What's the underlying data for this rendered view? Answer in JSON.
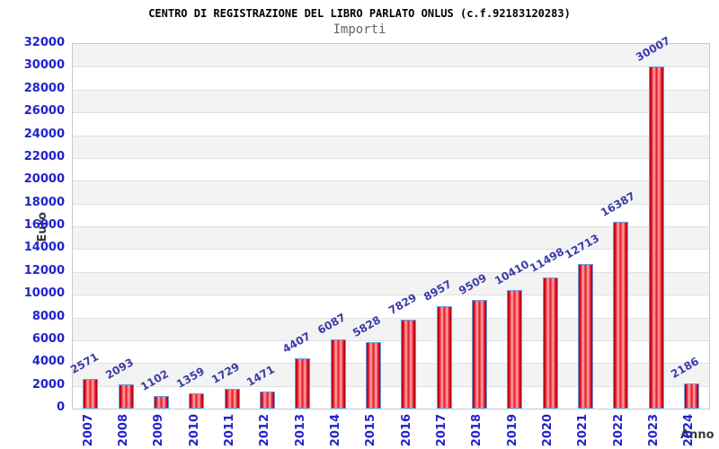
{
  "chart_data": {
    "type": "bar",
    "title": "CENTRO DI REGISTRAZIONE DEL LIBRO PARLATO ONLUS (c.f.92183120283)",
    "subtitle": "Importi",
    "xlabel": "Anno",
    "ylabel": "Euro",
    "categories": [
      "2007",
      "2008",
      "2009",
      "2010",
      "2011",
      "2012",
      "2013",
      "2014",
      "2015",
      "2016",
      "2017",
      "2018",
      "2019",
      "2020",
      "2021",
      "2022",
      "2023",
      "2024"
    ],
    "values": [
      2571,
      2093,
      1102,
      1359,
      1729,
      1471,
      4407,
      6087,
      5828,
      7829,
      8957,
      9509,
      10410,
      11498,
      12713,
      16387,
      30007,
      2186
    ],
    "ylim": [
      0,
      32000
    ],
    "ytick_step": 2000,
    "yticks": [
      0,
      2000,
      4000,
      6000,
      8000,
      10000,
      12000,
      14000,
      16000,
      18000,
      20000,
      22000,
      24000,
      26000,
      28000,
      30000,
      32000
    ],
    "grid": "horizontal",
    "legend": "none",
    "bar_value_labels": true
  },
  "colors": {
    "tick_label": "#2222cc",
    "value_label": "#3b3bab",
    "bar_fill_main": "#e81325",
    "bar_fill_light": "#ffadad",
    "bar_fill_dark": "#a00012",
    "bar_border": "#64a0e0",
    "band_gray": "#f3f3f3",
    "band_white": "#ffffff",
    "gridline": "#e0e0e0",
    "plot_border": "#c9c9c9",
    "title_text": "#000000",
    "subtitle_text": "#666666",
    "axis_title_text": "#3a3a3a"
  }
}
